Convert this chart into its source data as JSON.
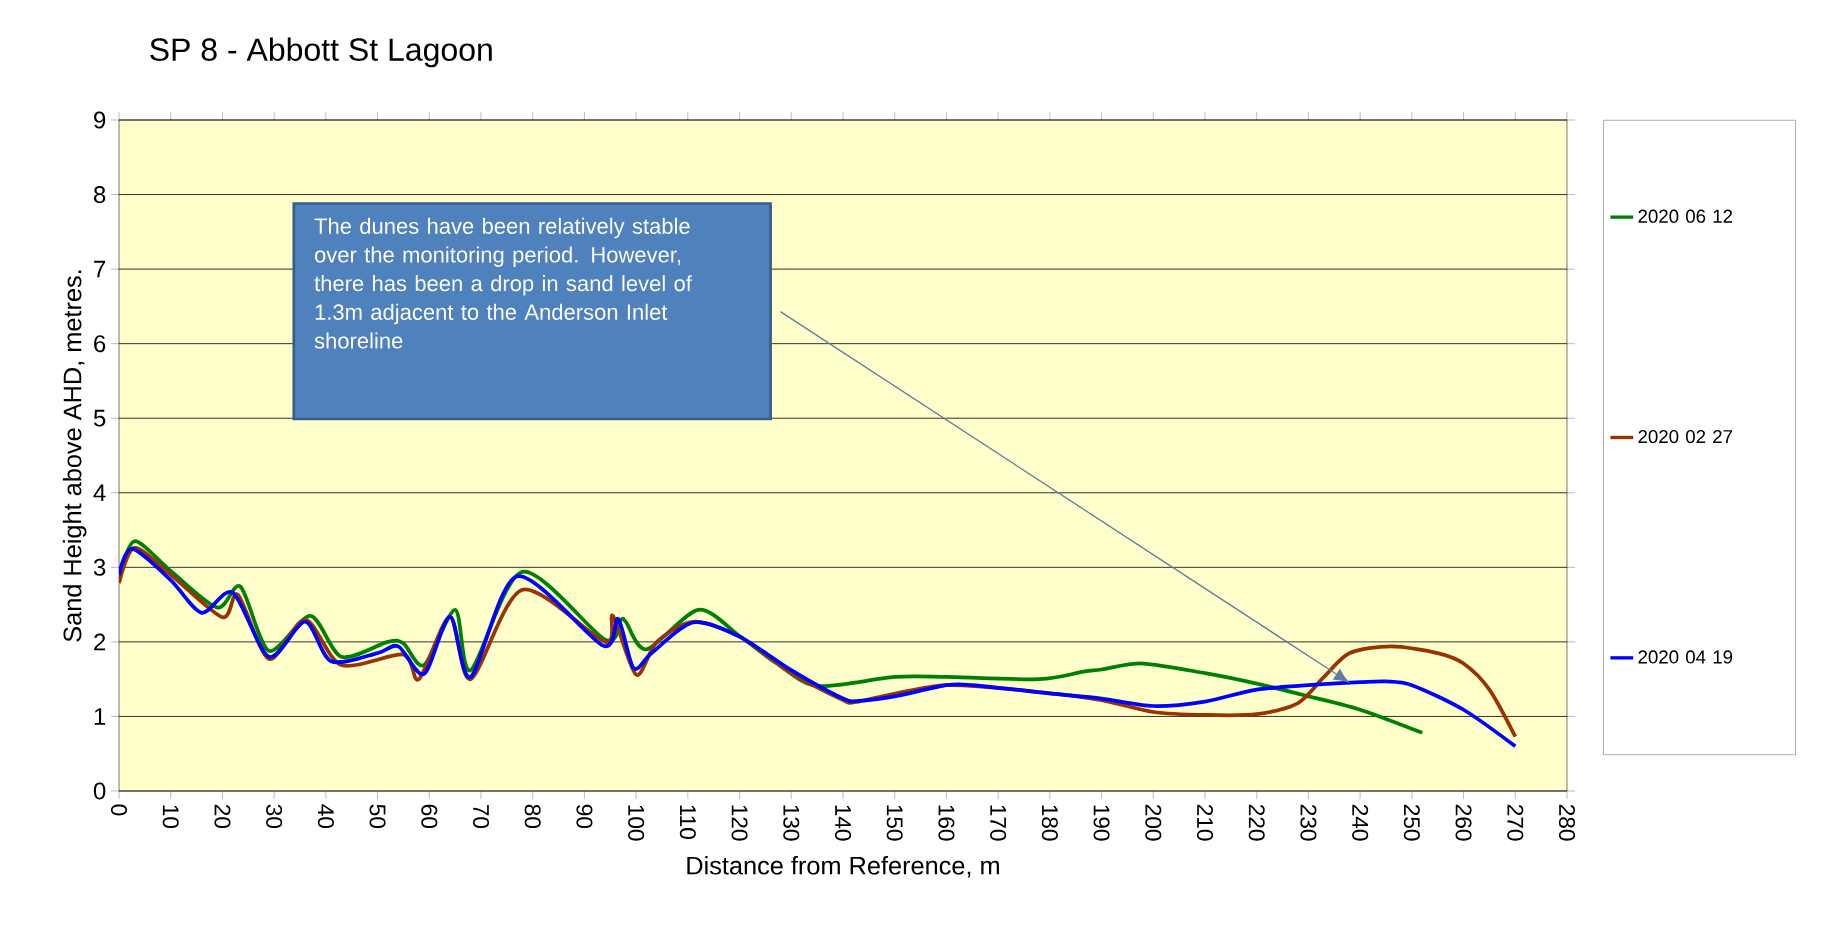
{
  "chart_data": {
    "type": "line",
    "title": "SP 8  - Abbott St Lagoon",
    "xlabel": "Distance from Reference, m",
    "ylabel": "Sand Height above AHD, metres.",
    "xlim": [
      0,
      280
    ],
    "xticks": [
      0,
      10,
      20,
      30,
      40,
      50,
      60,
      70,
      80,
      90,
      100,
      110,
      120,
      130,
      140,
      150,
      160,
      170,
      180,
      190,
      200,
      210,
      220,
      230,
      240,
      250,
      260,
      270,
      280
    ],
    "ylim": [
      0,
      9
    ],
    "yticks": [
      0,
      1,
      2,
      3,
      4,
      5,
      6,
      7,
      8,
      9
    ],
    "grid": "y",
    "legend": "right",
    "series": [
      {
        "name": "2020 06 12",
        "color": "#008000",
        "x": [
          0,
          3,
          10,
          19,
          23.5,
          29,
          37,
          43,
          52,
          55,
          59,
          65,
          68,
          78,
          94,
          97,
          98,
          102,
          112,
          120,
          127,
          135,
          150,
          160,
          178,
          186.5,
          190,
          198,
          210,
          220,
          230,
          240,
          252
        ],
        "values": [
          2.85,
          3.35,
          2.95,
          2.46,
          2.74,
          1.88,
          2.35,
          1.8,
          2.0,
          1.98,
          1.69,
          2.43,
          1.62,
          2.94,
          2.03,
          2.29,
          2.27,
          1.9,
          2.43,
          2.08,
          1.72,
          1.41,
          1.53,
          1.53,
          1.5,
          1.6,
          1.63,
          1.71,
          1.58,
          1.44,
          1.27,
          1.09,
          0.78
        ]
      },
      {
        "name": "2020 02 27",
        "color": "#993300",
        "x": [
          0,
          3,
          10,
          20,
          23,
          29,
          36,
          43,
          55,
          58,
          64,
          68,
          78,
          94,
          95.5,
          100,
          104,
          111,
          120,
          130,
          140,
          143,
          160,
          180,
          190,
          200,
          210,
          220,
          228,
          233,
          238,
          246,
          255,
          260,
          265,
          270
        ],
        "values": [
          2.79,
          3.26,
          2.9,
          2.33,
          2.63,
          1.77,
          2.3,
          1.69,
          1.83,
          1.5,
          2.34,
          1.5,
          2.7,
          2.0,
          2.35,
          1.56,
          2.0,
          2.27,
          2.07,
          1.58,
          1.22,
          1.2,
          1.42,
          1.31,
          1.22,
          1.06,
          1.02,
          1.03,
          1.18,
          1.53,
          1.85,
          1.94,
          1.85,
          1.71,
          1.36,
          0.73
        ]
      },
      {
        "name": "2020 04 19",
        "color": "#0000ff",
        "x": [
          0,
          2.5,
          10,
          16,
          22,
          29,
          36,
          41,
          50,
          54,
          59,
          64,
          68,
          77,
          93.6,
          96.5,
          99.5,
          103,
          111,
          120,
          130,
          140,
          143,
          150,
          160,
          165,
          180,
          190,
          200,
          210,
          220,
          230,
          240,
          245,
          250,
          260,
          270
        ],
        "values": [
          2.9,
          3.25,
          2.83,
          2.39,
          2.66,
          1.8,
          2.27,
          1.74,
          1.85,
          1.94,
          1.57,
          2.34,
          1.53,
          2.88,
          1.95,
          2.31,
          1.65,
          1.85,
          2.26,
          2.07,
          1.62,
          1.24,
          1.21,
          1.27,
          1.42,
          1.42,
          1.31,
          1.24,
          1.14,
          1.2,
          1.36,
          1.42,
          1.46,
          1.47,
          1.42,
          1.09,
          0.6
        ]
      }
    ],
    "annotations": [
      "The dunes have  been relatively stable over the monitoring period. However, there has been a drop in sand level of 1.3m adjacent to the Anderson Inlet shoreline"
    ]
  }
}
